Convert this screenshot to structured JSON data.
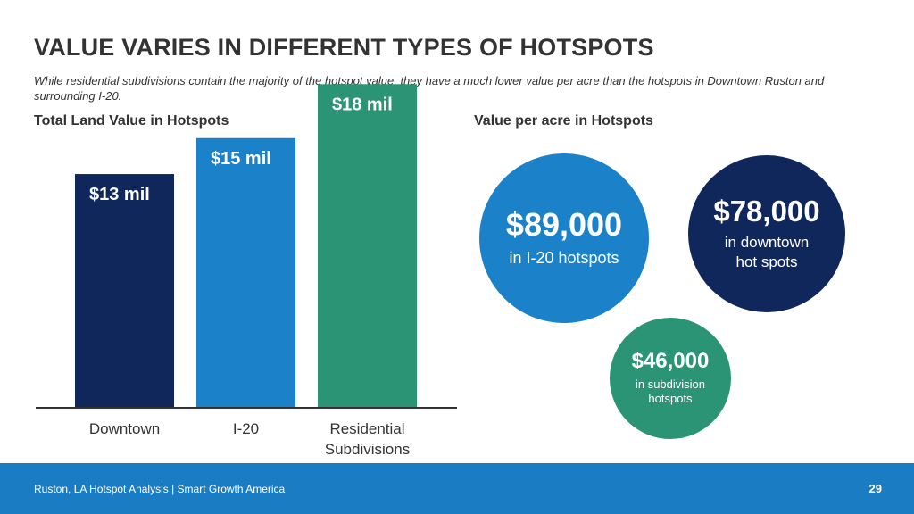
{
  "slide": {
    "title": "VALUE VARIES IN DIFFERENT TYPES OF HOTSPOTS",
    "subtitle": "While residential subdivisions contain the majority of the hotspot value, they have a much lower value per acre than the hotspots in Downtown Ruston and surrounding I-20."
  },
  "chart_data": [
    {
      "type": "bar",
      "title": "Total Land Value in Hotspots",
      "unit": "million USD",
      "categories": [
        "Downtown",
        "I-20",
        "Residential Subdivisions"
      ],
      "category_lines": [
        [
          "Downtown"
        ],
        [
          "I-20"
        ],
        [
          "Residential",
          "Subdivisions"
        ]
      ],
      "values": [
        13,
        15,
        18
      ],
      "data_labels": [
        "$13 mil",
        "$15 mil",
        "$18 mil"
      ],
      "colors": [
        "#10275b",
        "#1b82c9",
        "#2b9474"
      ],
      "ylim": [
        0,
        20
      ],
      "grid": false,
      "legend": false
    },
    {
      "type": "bubble",
      "title": "Value per acre in Hotspots",
      "unit": "USD per acre",
      "items": [
        {
          "value": 89000,
          "value_label": "$89,000",
          "caption": [
            "in I-20 hotspots"
          ],
          "color": "#1b82c9"
        },
        {
          "value": 78000,
          "value_label": "$78,000",
          "caption": [
            "in downtown",
            "hot spots"
          ],
          "color": "#10275b"
        },
        {
          "value": 46000,
          "value_label": "$46,000",
          "caption": [
            "in subdivision",
            "hotspots"
          ],
          "color": "#2b9474"
        }
      ]
    }
  ],
  "footer": {
    "text": "Ruston, LA Hotspot Analysis | Smart Growth America",
    "page_number": "29"
  }
}
